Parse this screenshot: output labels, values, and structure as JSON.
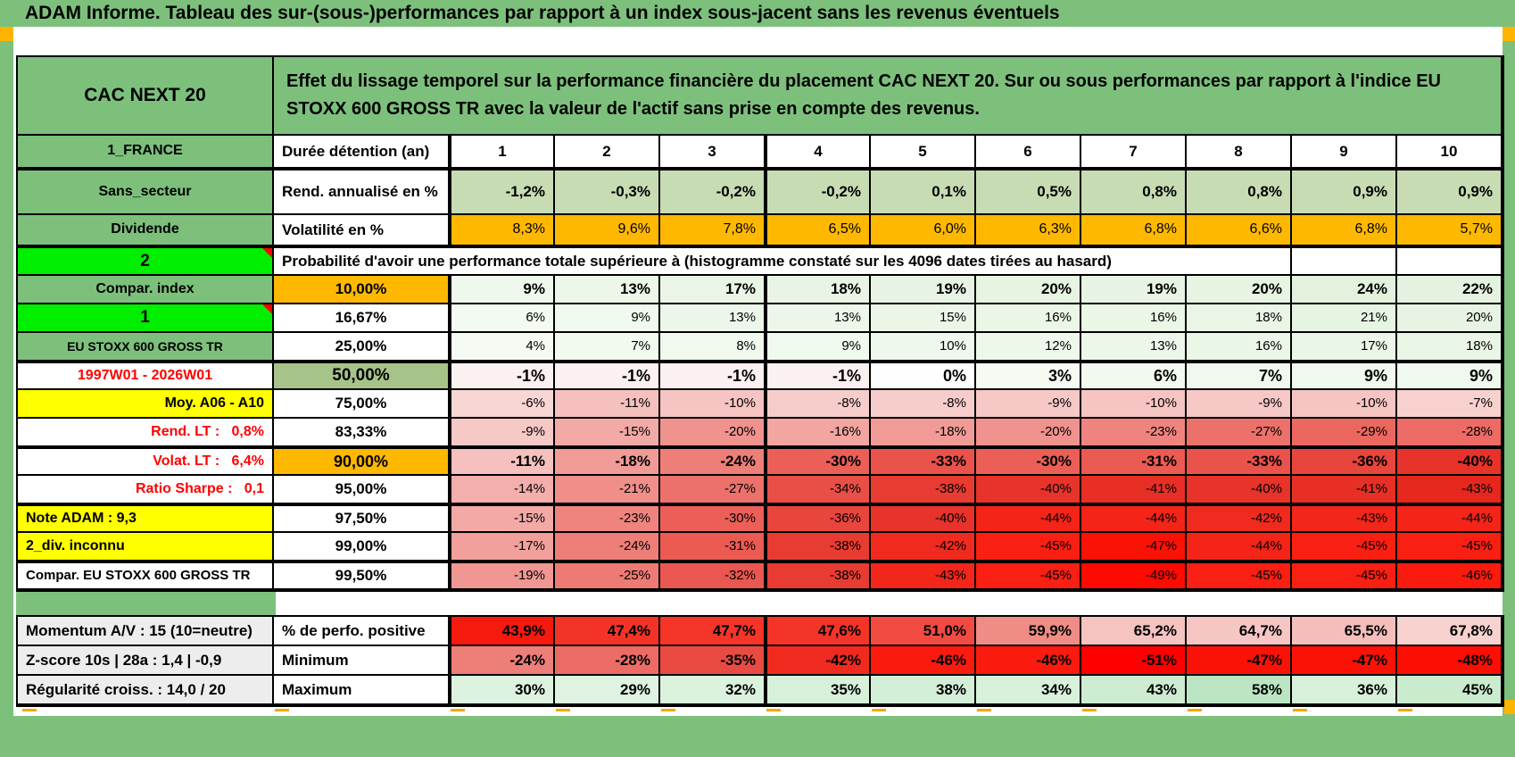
{
  "page_title": "ADAM Informe. Tableau des sur-(sous-)performances par rapport à un index sous-jacent sans les revenus éventuels",
  "palette": {
    "green_header": "#7CC07C",
    "bright_green": "#00EE00",
    "orange": "#FFB800",
    "yellow": "#FFFF00",
    "green_50": "#A6C489",
    "sage": "#C8DCB4",
    "gray_label": "#EDEDED",
    "red_text": "#FF0000",
    "marker_orange": "#FFB400"
  },
  "layout": {
    "colA": 287,
    "colB": 197,
    "colD": 118,
    "main_row_heights": [
      88,
      37,
      52,
      35,
      33,
      32,
      32,
      32,
      32,
      32,
      32,
      32,
      32,
      32,
      32,
      32
    ],
    "bottom_row_heights": [
      33,
      33,
      33
    ]
  },
  "header": {
    "instrument": "CAC NEXT 20",
    "description": "Effet du lissage temporel sur la performance financière du placement CAC NEXT 20. Sur ou sous performances par rapport à l'indice EU STOXX 600 GROSS TR avec la valeur de l'actif sans prise en compte des revenus."
  },
  "columns": [
    "1",
    "2",
    "3",
    "4",
    "5",
    "6",
    "7",
    "8",
    "9",
    "10"
  ],
  "main_rows": [
    {
      "a": {
        "t": "1_FRANCE"
      },
      "b": {
        "t": "Durée détention (an)"
      },
      "cells": {
        "cols": true
      }
    },
    {
      "a": {
        "t": "Sans_secteur"
      },
      "b": {
        "t": "Rend. annualisé en %"
      },
      "tt": 1,
      "cells": {
        "bold": 1,
        "fs": 17,
        "v": [
          "-1,2%",
          "-0,3%",
          "-0,2%",
          "-0,2%",
          "0,1%",
          "0,5%",
          "0,8%",
          "0,8%",
          "0,9%",
          "0,9%"
        ],
        "c": [
          "#C8DCB4",
          "#C8DCB4",
          "#C8DCB4",
          "#C8DCB4",
          "#C8DCB4",
          "#C8DCB4",
          "#C8DCB4",
          "#C8DCB4",
          "#C8DCB4",
          "#C8DCB4"
        ]
      }
    },
    {
      "a": {
        "t": "Dividende"
      },
      "b": {
        "t": "Volatilité en %"
      },
      "cells": {
        "bold": 0,
        "fs": 16,
        "v": [
          "8,3%",
          "9,6%",
          "7,8%",
          "6,5%",
          "6,0%",
          "6,3%",
          "6,8%",
          "6,6%",
          "6,8%",
          "5,7%"
        ],
        "c": [
          "#FFB800",
          "#FFB800",
          "#FFB800",
          "#FFB800",
          "#FFB800",
          "#FFB800",
          "#FFB800",
          "#FFB800",
          "#FFB800",
          "#FFB800"
        ]
      }
    },
    {
      "a": {
        "t": "2",
        "bg": "#00EE00",
        "fs": 19,
        "corner": 1
      },
      "tt": 1,
      "cells": {
        "span": "Probabilité d'avoir une performance totale supérieure à (histogramme constaté sur les 4096 dates tirées au hasard)",
        "n": 9,
        "empties": 2
      }
    },
    {
      "a": {
        "t": "Compar. index"
      },
      "b": {
        "t": "10,00%",
        "bg": "#FFB800",
        "al": "c",
        "fs": 17
      },
      "cells": {
        "bold": 1,
        "fs": 17,
        "v": [
          "9%",
          "13%",
          "17%",
          "18%",
          "19%",
          "20%",
          "19%",
          "20%",
          "24%",
          "22%"
        ],
        "c": [
          "#EFF8EC",
          "#ECF7E8",
          "#E9F5E5",
          "#E8F5E4",
          "#E7F4E3",
          "#E6F4E2",
          "#E7F4E3",
          "#E6F4E2",
          "#E2F2DD",
          "#E4F3E0"
        ]
      }
    },
    {
      "a": {
        "t": "1",
        "bg": "#00EE00",
        "fs": 19,
        "corner": 1
      },
      "b": {
        "t": "16,67%",
        "al": "c"
      },
      "cells": {
        "bold": 0,
        "fs": 15,
        "v": [
          "6%",
          "9%",
          "13%",
          "13%",
          "15%",
          "16%",
          "16%",
          "18%",
          "21%",
          "20%"
        ],
        "c": [
          "#F3FAF1",
          "#F0F9ED",
          "#EDF7E9",
          "#EDF7E9",
          "#EBF6E7",
          "#EAF6E6",
          "#EAF6E6",
          "#E9F5E5",
          "#E6F4E2",
          "#E7F4E3"
        ]
      }
    },
    {
      "a": {
        "t": "EU STOXX 600 GROSS TR",
        "fs": 14
      },
      "b": {
        "t": "25,00%",
        "al": "c"
      },
      "cells": {
        "bold": 0,
        "fs": 15,
        "v": [
          "4%",
          "7%",
          "8%",
          "9%",
          "10%",
          "12%",
          "13%",
          "16%",
          "17%",
          "18%"
        ],
        "c": [
          "#F5FBF3",
          "#F2F9EF",
          "#F1F9EE",
          "#F0F9ED",
          "#EFF8EC",
          "#EEF8EA",
          "#EDF7E9",
          "#EAF6E6",
          "#EAF6E6",
          "#E9F5E5"
        ]
      }
    },
    {
      "a": {
        "t": "1997W01 - 2026W01",
        "bg": "#FFFFFF",
        "col": "#FF0000"
      },
      "b": {
        "t": "50,00%",
        "bg": "#A6C489",
        "al": "c",
        "fs": 19
      },
      "tt": 1,
      "cells": {
        "bold": 1,
        "fs": 18,
        "v": [
          "-1%",
          "-1%",
          "-1%",
          "-1%",
          "0%",
          "3%",
          "6%",
          "7%",
          "9%",
          "9%"
        ],
        "c": [
          "#FBF1F0",
          "#FBF1F0",
          "#FBF1F0",
          "#FBF1F0",
          "#FEFEFE",
          "#F5FBF3",
          "#F2FAF0",
          "#F1F9EF",
          "#F0F9ED",
          "#F0F9ED"
        ]
      }
    },
    {
      "a": {
        "t": "Moy. A06 - A10",
        "bg": "#FFFF00",
        "al": "r"
      },
      "b": {
        "t": "75,00%",
        "al": "c"
      },
      "cells": {
        "bold": 0,
        "fs": 15,
        "v": [
          "-6%",
          "-11%",
          "-10%",
          "-8%",
          "-8%",
          "-9%",
          "-10%",
          "-9%",
          "-10%",
          "-7%"
        ],
        "c": [
          "#F8D6D4",
          "#F5C0BD",
          "#F6C4C2",
          "#F7CDCB",
          "#F7CDCB",
          "#F6C8C6",
          "#F6C4C2",
          "#F6C8C6",
          "#F6C4C2",
          "#F8D1CF"
        ]
      }
    },
    {
      "a": {
        "t": "Rend. LT :   0,8%",
        "bg": "#FFFFFF",
        "col": "#FF0000",
        "al": "r",
        "pre": 1
      },
      "b": {
        "t": "83,33%",
        "al": "c"
      },
      "cells": {
        "bold": 0,
        "fs": 15,
        "v": [
          "-9%",
          "-15%",
          "-20%",
          "-16%",
          "-18%",
          "-20%",
          "-23%",
          "-27%",
          "-29%",
          "-28%"
        ],
        "c": [
          "#F6C8C6",
          "#F3A9A6",
          "#F0938F",
          "#F2A5A1",
          "#F19B97",
          "#F0938F",
          "#EF847F",
          "#ED716B",
          "#EC675F",
          "#EC6C65"
        ]
      }
    },
    {
      "a": {
        "t": "Volat. LT :   6,4%",
        "bg": "#FFFFFF",
        "col": "#FF0000",
        "al": "r",
        "pre": 1
      },
      "b": {
        "t": "90,00%",
        "bg": "#FFB800",
        "al": "c",
        "fs": 18
      },
      "tt": 1,
      "cells": {
        "bold": 1,
        "fs": 17,
        "v": [
          "-11%",
          "-18%",
          "-24%",
          "-30%",
          "-33%",
          "-30%",
          "-31%",
          "-33%",
          "-36%",
          "-40%"
        ],
        "c": [
          "#F5C0BD",
          "#F19B97",
          "#EE7E78",
          "#EB5F57",
          "#EA534B",
          "#EB5F57",
          "#EB5B52",
          "#EA534B",
          "#E8453C",
          "#E7332A"
        ]
      }
    },
    {
      "a": {
        "t": "Ratio Sharpe :   0,1",
        "bg": "#FFFFFF",
        "col": "#FF0000",
        "al": "r",
        "pre": 1
      },
      "b": {
        "t": "95,00%",
        "al": "c"
      },
      "cells": {
        "bold": 0,
        "fs": 15,
        "v": [
          "-14%",
          "-21%",
          "-27%",
          "-34%",
          "-38%",
          "-40%",
          "-41%",
          "-40%",
          "-41%",
          "-43%"
        ],
        "c": [
          "#F4AEAB",
          "#F08E89",
          "#ED716B",
          "#E94F46",
          "#E83B32",
          "#E7332A",
          "#E72F25",
          "#E7332A",
          "#E72F25",
          "#E6271D"
        ]
      }
    },
    {
      "a": {
        "t": "Note ADAM : 9,3",
        "bg": "#FFFF00",
        "al": "l"
      },
      "b": {
        "t": "97,50%",
        "al": "c"
      },
      "tt": 1,
      "cells": {
        "bold": 0,
        "fs": 15,
        "v": [
          "-15%",
          "-23%",
          "-30%",
          "-36%",
          "-40%",
          "-44%",
          "-44%",
          "-42%",
          "-43%",
          "-44%"
        ],
        "c": [
          "#F3A9A6",
          "#EF847F",
          "#EB5F57",
          "#E8453C",
          "#E7332A",
          "#F42418",
          "#F42418",
          "#F02A1E",
          "#F2261A",
          "#F42418"
        ]
      }
    },
    {
      "a": {
        "t": "2_div. inconnu",
        "bg": "#FFFF00",
        "al": "l"
      },
      "b": {
        "t": "99,00%",
        "al": "c"
      },
      "cells": {
        "bold": 0,
        "fs": 15,
        "v": [
          "-17%",
          "-24%",
          "-31%",
          "-38%",
          "-42%",
          "-45%",
          "-47%",
          "-44%",
          "-45%",
          "-45%"
        ],
        "c": [
          "#F2A09C",
          "#EE7E78",
          "#EB5B52",
          "#E83B32",
          "#F02A1E",
          "#F91F13",
          "#FB1206",
          "#F42418",
          "#F91F13",
          "#F91F13"
        ]
      }
    },
    {
      "a": {
        "t": "Compar. EU STOXX 600 GROSS TR",
        "bg": "#FFFFFF",
        "al": "l",
        "fs": 15,
        "nowrap": 1
      },
      "b": {
        "t": "99,50%",
        "al": "c"
      },
      "tt": 1,
      "cells": {
        "bold": 0,
        "fs": 15,
        "v": [
          "-19%",
          "-25%",
          "-32%",
          "-38%",
          "-43%",
          "-45%",
          "-49%",
          "-45%",
          "-45%",
          "-46%"
        ],
        "c": [
          "#F19793",
          "#EE7A74",
          "#EA5750",
          "#E83B32",
          "#F2261A",
          "#F91F13",
          "#FD0A00",
          "#F91F13",
          "#F91F13",
          "#FA1B0E"
        ]
      }
    }
  ],
  "bottom_rows": [
    {
      "a": "Momentum A/V : 15 (10=neutre)",
      "b": "% de perfo. positive",
      "v": [
        "43,9%",
        "47,4%",
        "47,7%",
        "47,6%",
        "51,0%",
        "59,9%",
        "65,2%",
        "64,7%",
        "65,5%",
        "67,8%"
      ],
      "c": [
        "#F6190D",
        "#F43327",
        "#F43528",
        "#F43428",
        "#F24B41",
        "#EF8C85",
        "#F5C3C0",
        "#F5C6C3",
        "#F4BEBB",
        "#F7D2CF"
      ]
    },
    {
      "a": "Z-score 10s | 28a : 1,4 | -0,9",
      "b": "Minimum",
      "v": [
        "-24%",
        "-28%",
        "-35%",
        "-42%",
        "-46%",
        "-46%",
        "-51%",
        "-47%",
        "-47%",
        "-48%"
      ],
      "c": [
        "#EE7E78",
        "#EC6C65",
        "#E94B42",
        "#F02A1E",
        "#FA1B0E",
        "#FA1B0E",
        "#FF0000",
        "#FB1206",
        "#FB1206",
        "#FC0F02"
      ]
    },
    {
      "a": "Régularité croiss. : 14,0 / 20",
      "b": "Maximum",
      "v": [
        "30%",
        "29%",
        "32%",
        "35%",
        "38%",
        "34%",
        "43%",
        "58%",
        "36%",
        "45%"
      ],
      "c": [
        "#DDF3DF",
        "#DEF3E0",
        "#DBF2DD",
        "#D7F0DA",
        "#D4EFD7",
        "#D8F1DB",
        "#CDECD1",
        "#BCE5C3",
        "#D6F0D9",
        "#CBEBCF"
      ]
    }
  ]
}
